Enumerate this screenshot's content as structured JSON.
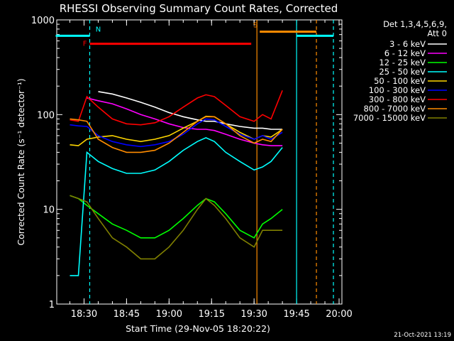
{
  "chart_data": {
    "type": "line",
    "title": "RHESSI Observing Summary Count Rates, Corrected",
    "xlabel": "Start Time (29-Nov-05 18:20:22)",
    "ylabel": "Corrected Count Rate (s⁻¹ detector⁻¹)",
    "y_scale": "log",
    "ylim": [
      1,
      1000
    ],
    "xlim": [
      "18:20:22",
      "20:01:00"
    ],
    "x_ticks": [
      "18:30",
      "18:45",
      "19:00",
      "19:15",
      "19:30",
      "19:45",
      "20:00"
    ],
    "y_ticks": [
      "1",
      "10",
      "100",
      "1000"
    ],
    "legend_title": [
      "Det 1,3,4,5,6,9,",
      "Att 0"
    ],
    "legend_position": "right",
    "footer_date": "21-Oct-2021 13:19",
    "flags": [
      {
        "label": "F",
        "color": "#ff0000",
        "start": "18:32",
        "end": "19:29",
        "level": 560
      },
      {
        "label": "N",
        "color": "#00ffff",
        "start": "18:20",
        "end": "18:32",
        "level": 680
      },
      {
        "label": "S",
        "color": "#ff8c00",
        "start": "19:32",
        "end": "19:52",
        "level": 750
      },
      {
        "label": "",
        "color": "#00ffff",
        "start": "19:45",
        "end": "19:58",
        "level": 680
      }
    ],
    "markers": [
      {
        "time": "18:32",
        "color": "#00ffff",
        "style": "dashed"
      },
      {
        "time": "19:31",
        "color": "#ff8c00",
        "style": "solid"
      },
      {
        "time": "19:45",
        "color": "#00ffff",
        "style": "solid"
      },
      {
        "time": "19:52",
        "color": "#ff8c00",
        "style": "dashed"
      },
      {
        "time": "19:58",
        "color": "#00ffff",
        "style": "dashed"
      }
    ],
    "time_points": [
      "18:25",
      "18:28",
      "18:31",
      "18:35",
      "18:40",
      "18:45",
      "18:50",
      "18:55",
      "19:00",
      "19:05",
      "19:10",
      "19:13",
      "19:16",
      "19:20",
      "19:25",
      "19:30",
      "19:33",
      "19:36",
      "19:40"
    ],
    "series": [
      {
        "name": "3 - 6 keV",
        "color": "#ffffff",
        "start": "18:30",
        "end": "19:40",
        "values": [
          null,
          null,
          null,
          175,
          165,
          150,
          135,
          120,
          105,
          95,
          88,
          85,
          85,
          80,
          75,
          72,
          72,
          70,
          70
        ]
      },
      {
        "name": "6 - 12 keV",
        "color": "#ff00ff",
        "start": "18:29",
        "end": "19:40",
        "values": [
          null,
          null,
          150,
          140,
          130,
          115,
          100,
          90,
          80,
          73,
          70,
          70,
          68,
          62,
          55,
          50,
          48,
          47,
          47
        ]
      },
      {
        "name": "12 - 25 keV",
        "color": "#00ff00",
        "start": "18:22",
        "end": "19:40",
        "values": [
          14,
          13,
          11,
          9,
          7,
          6,
          5,
          5,
          6,
          8,
          11,
          13,
          12,
          9,
          6,
          5,
          7,
          8,
          10
        ]
      },
      {
        "name": "25 - 50 keV",
        "color": "#00ffff",
        "start": "18:22",
        "end": "19:40",
        "values": [
          2,
          2,
          40,
          32,
          27,
          24,
          24,
          26,
          32,
          42,
          52,
          57,
          52,
          40,
          32,
          26,
          28,
          32,
          45
        ]
      },
      {
        "name": "50 - 100 keV",
        "color": "#ffd700",
        "start": "18:22",
        "end": "19:40",
        "values": [
          48,
          47,
          55,
          58,
          60,
          55,
          52,
          55,
          60,
          72,
          85,
          96,
          95,
          80,
          65,
          55,
          60,
          58,
          70
        ]
      },
      {
        "name": "100 - 300 keV",
        "color": "#0000ff",
        "start": "18:22",
        "end": "19:40",
        "values": [
          78,
          76,
          75,
          60,
          52,
          48,
          46,
          48,
          52,
          62,
          80,
          90,
          88,
          75,
          62,
          55,
          60,
          55,
          65
        ]
      },
      {
        "name": "300 - 800 keV",
        "color": "#ff0000",
        "start": "18:22",
        "end": "19:40",
        "values": [
          88,
          85,
          155,
          120,
          90,
          80,
          78,
          82,
          95,
          120,
          150,
          162,
          155,
          125,
          95,
          85,
          100,
          90,
          180
        ]
      },
      {
        "name": "800 - 7000 keV",
        "color": "#ff8c00",
        "start": "18:22",
        "end": "19:40",
        "values": [
          90,
          88,
          85,
          55,
          45,
          40,
          40,
          42,
          50,
          65,
          85,
          95,
          95,
          80,
          60,
          50,
          55,
          52,
          70
        ]
      },
      {
        "name": "7000 - 15000 keV",
        "color": "#808000",
        "start": "18:22",
        "end": "19:40",
        "values": [
          14,
          13,
          12,
          8,
          5,
          4,
          3,
          3,
          4,
          6,
          10,
          13,
          11,
          8,
          5,
          4,
          6,
          6,
          6
        ]
      }
    ]
  }
}
